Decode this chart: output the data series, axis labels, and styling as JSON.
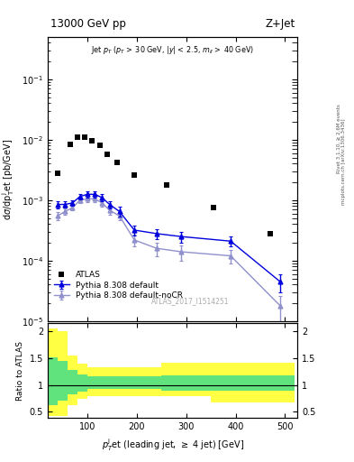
{
  "title_left": "13000 GeV pp",
  "title_right": "Z+Jet",
  "watermark": "ATLAS_2017_I1514251",
  "ylabel_ratio": "Ratio to ATLAS",
  "right_label1": "Rivet 3.1.10, ≥ 2.6M events",
  "right_label2": "mcplots.cern.ch [arXiv:1306.3436]",
  "atlas_x": [
    40,
    65,
    80,
    95,
    110,
    125,
    140,
    160,
    195,
    260,
    355,
    470
  ],
  "atlas_y": [
    0.0028,
    0.0085,
    0.011,
    0.011,
    0.0095,
    0.008,
    0.0058,
    0.0042,
    0.0026,
    0.0018,
    0.00075,
    0.00028
  ],
  "pythia_default_x": [
    40,
    55,
    70,
    85,
    100,
    115,
    130,
    145,
    165,
    195,
    240,
    290,
    390,
    490
  ],
  "pythia_default_y": [
    0.00085,
    0.00085,
    0.0009,
    0.00115,
    0.00125,
    0.00125,
    0.0011,
    0.00085,
    0.00065,
    0.00032,
    0.00028,
    0.00025,
    0.00021,
    4.5e-05
  ],
  "pythia_default_yerr": [
    0.00012,
    0.0001,
    0.0001,
    0.00013,
    0.00014,
    0.00015,
    0.00015,
    0.00012,
    0.00012,
    6e-05,
    5e-05,
    5e-05,
    4e-05,
    1.5e-05
  ],
  "pythia_nocr_x": [
    40,
    55,
    70,
    85,
    100,
    115,
    130,
    145,
    165,
    195,
    240,
    290,
    390,
    490
  ],
  "pythia_nocr_y": [
    0.00055,
    0.00065,
    0.00075,
    0.001,
    0.00105,
    0.00105,
    0.0009,
    0.00068,
    0.00055,
    0.00022,
    0.00016,
    0.00014,
    0.00012,
    1.8e-05
  ],
  "pythia_nocr_yerr": [
    8e-05,
    8e-05,
    8e-05,
    0.00011,
    0.00012,
    0.00012,
    0.00011,
    0.0001,
    9e-05,
    5e-05,
    4e-05,
    4e-05,
    3e-05,
    8e-06
  ],
  "ratio_bins": [
    20,
    40,
    60,
    80,
    100,
    120,
    140,
    160,
    200,
    250,
    350,
    450,
    520
  ],
  "ratio_yellow_lo": [
    0.42,
    0.42,
    0.62,
    0.74,
    0.79,
    0.79,
    0.79,
    0.79,
    0.79,
    0.79,
    0.67,
    0.67
  ],
  "ratio_yellow_hi": [
    2.05,
    2.0,
    1.55,
    1.4,
    1.33,
    1.33,
    1.33,
    1.33,
    1.33,
    1.42,
    1.42,
    1.42
  ],
  "ratio_green_lo": [
    0.62,
    0.7,
    0.83,
    0.88,
    0.92,
    0.92,
    0.92,
    0.92,
    0.92,
    0.9,
    0.9,
    0.9
  ],
  "ratio_green_hi": [
    1.52,
    1.45,
    1.28,
    1.2,
    1.17,
    1.17,
    1.17,
    1.17,
    1.17,
    1.18,
    1.18,
    1.18
  ],
  "color_atlas": "#000000",
  "color_default": "#0000dd",
  "color_nocr": "#9090cc",
  "color_yellow": "#ffff44",
  "color_green": "#44dd88",
  "ylim_main": [
    1e-05,
    0.5
  ],
  "ylim_ratio": [
    0.38,
    2.15
  ],
  "xlim": [
    20,
    525
  ]
}
